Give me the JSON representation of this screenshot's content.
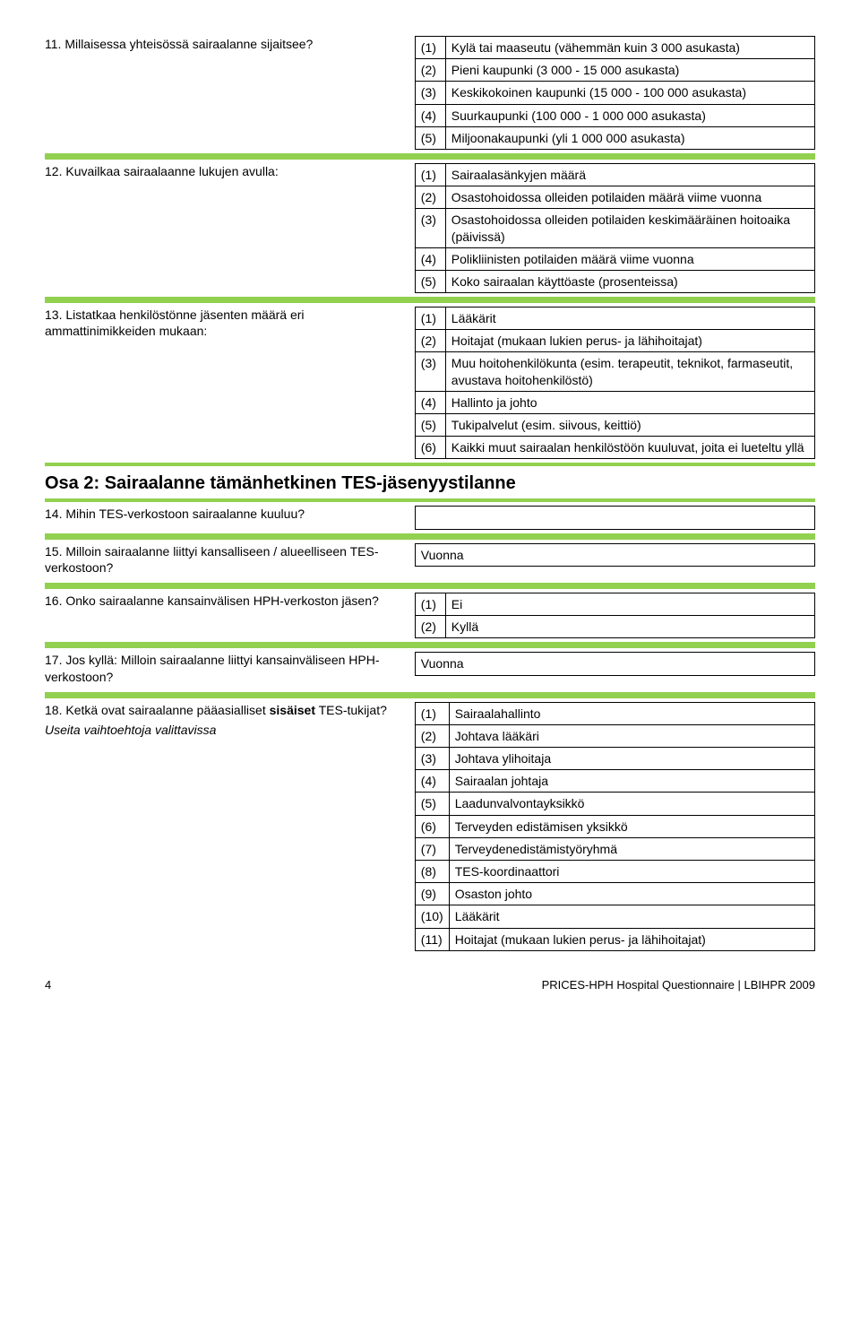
{
  "q11": {
    "question": "11. Millaisessa yhteisössä sairaalanne sijaitsee?",
    "options": [
      {
        "n": "(1)",
        "t": "Kylä tai maaseutu (vähemmän kuin 3 000 asukasta)"
      },
      {
        "n": "(2)",
        "t": "Pieni kaupunki (3 000 - 15 000 asukasta)"
      },
      {
        "n": "(3)",
        "t": "Keskikokoinen kaupunki (15 000 - 100 000 asukasta)"
      },
      {
        "n": "(4)",
        "t": "Suurkaupunki (100 000 - 1 000 000 asukasta)"
      },
      {
        "n": "(5)",
        "t": "Miljoonakaupunki (yli 1 000 000 asukasta)"
      }
    ]
  },
  "q12": {
    "question": "12. Kuvailkaa sairaalaanne lukujen avulla:",
    "options": [
      {
        "n": "(1)",
        "t": "Sairaalasänkyjen määrä"
      },
      {
        "n": "(2)",
        "t": "Osastohoidossa olleiden potilaiden määrä viime vuonna"
      },
      {
        "n": "(3)",
        "t": "Osastohoidossa olleiden potilaiden keskimääräinen hoitoaika (päivissä)"
      },
      {
        "n": "(4)",
        "t": "Polikliinisten potilaiden määrä viime vuonna"
      },
      {
        "n": "(5)",
        "t": "Koko sairaalan käyttöaste (prosenteissa)"
      }
    ]
  },
  "q13": {
    "question": "13. Listatkaa henkilöstönne jäsenten määrä eri ammattinimikkeiden mukaan:",
    "options": [
      {
        "n": "(1)",
        "t": "Lääkärit"
      },
      {
        "n": "(2)",
        "t": "Hoitajat (mukaan lukien perus- ja lähihoitajat)"
      },
      {
        "n": "(3)",
        "t": "Muu hoitohenkilökunta (esim. terapeutit, teknikot, farmaseutit, avustava hoitohenkilöstö)"
      },
      {
        "n": "(4)",
        "t": "Hallinto ja johto"
      },
      {
        "n": "(5)",
        "t": "Tukipalvelut (esim. siivous, keittiö)"
      },
      {
        "n": "(6)",
        "t": "Kaikki muut sairaalan henkilöstöön kuuluvat, joita ei lueteltu yllä"
      }
    ]
  },
  "section2": "Osa 2: Sairaalanne tämänhetkinen TES-jäsenyystilanne",
  "q14": {
    "question": "14. Mihin TES-verkostoon sairaalanne kuuluu?"
  },
  "q15": {
    "question": "15. Milloin sairaalanne liittyi kansalliseen / alueelliseen TES-verkostoon?",
    "answer": "Vuonna"
  },
  "q16": {
    "question": "16. Onko sairaalanne kansainvälisen HPH-verkoston jäsen?",
    "options": [
      {
        "n": "(1)",
        "t": "Ei"
      },
      {
        "n": "(2)",
        "t": "Kyllä"
      }
    ]
  },
  "q17": {
    "question": "17. Jos kyllä: Milloin sairaalanne liittyi kansainväliseen HPH-verkostoon?",
    "answer": "Vuonna"
  },
  "q18": {
    "question_a": "18. Ketkä ovat sairaalanne pääasialliset ",
    "question_bold": "sisäiset",
    "question_b": " TES-tukijat?",
    "note": "Useita vaihtoehtoja valittavissa",
    "options": [
      {
        "n": "(1)",
        "t": "Sairaalahallinto"
      },
      {
        "n": "(2)",
        "t": "Johtava lääkäri"
      },
      {
        "n": "(3)",
        "t": "Johtava ylihoitaja"
      },
      {
        "n": "(4)",
        "t": "Sairaalan johtaja"
      },
      {
        "n": "(5)",
        "t": "Laadunvalvontayksikkö"
      },
      {
        "n": "(6)",
        "t": "Terveyden edistämisen yksikkö"
      },
      {
        "n": "(7)",
        "t": "Terveydenedistämistyöryhmä"
      },
      {
        "n": "(8)",
        "t": "TES-koordinaattori"
      },
      {
        "n": "(9)",
        "t": "Osaston johto"
      },
      {
        "n": "(10)",
        "t": "Lääkärit"
      },
      {
        "n": "(11)",
        "t": "Hoitajat (mukaan lukien perus- ja lähihoitajat)"
      }
    ]
  },
  "footer": {
    "page": "4",
    "source": "PRICES-HPH Hospital Questionnaire | LBIHPR 2009"
  }
}
